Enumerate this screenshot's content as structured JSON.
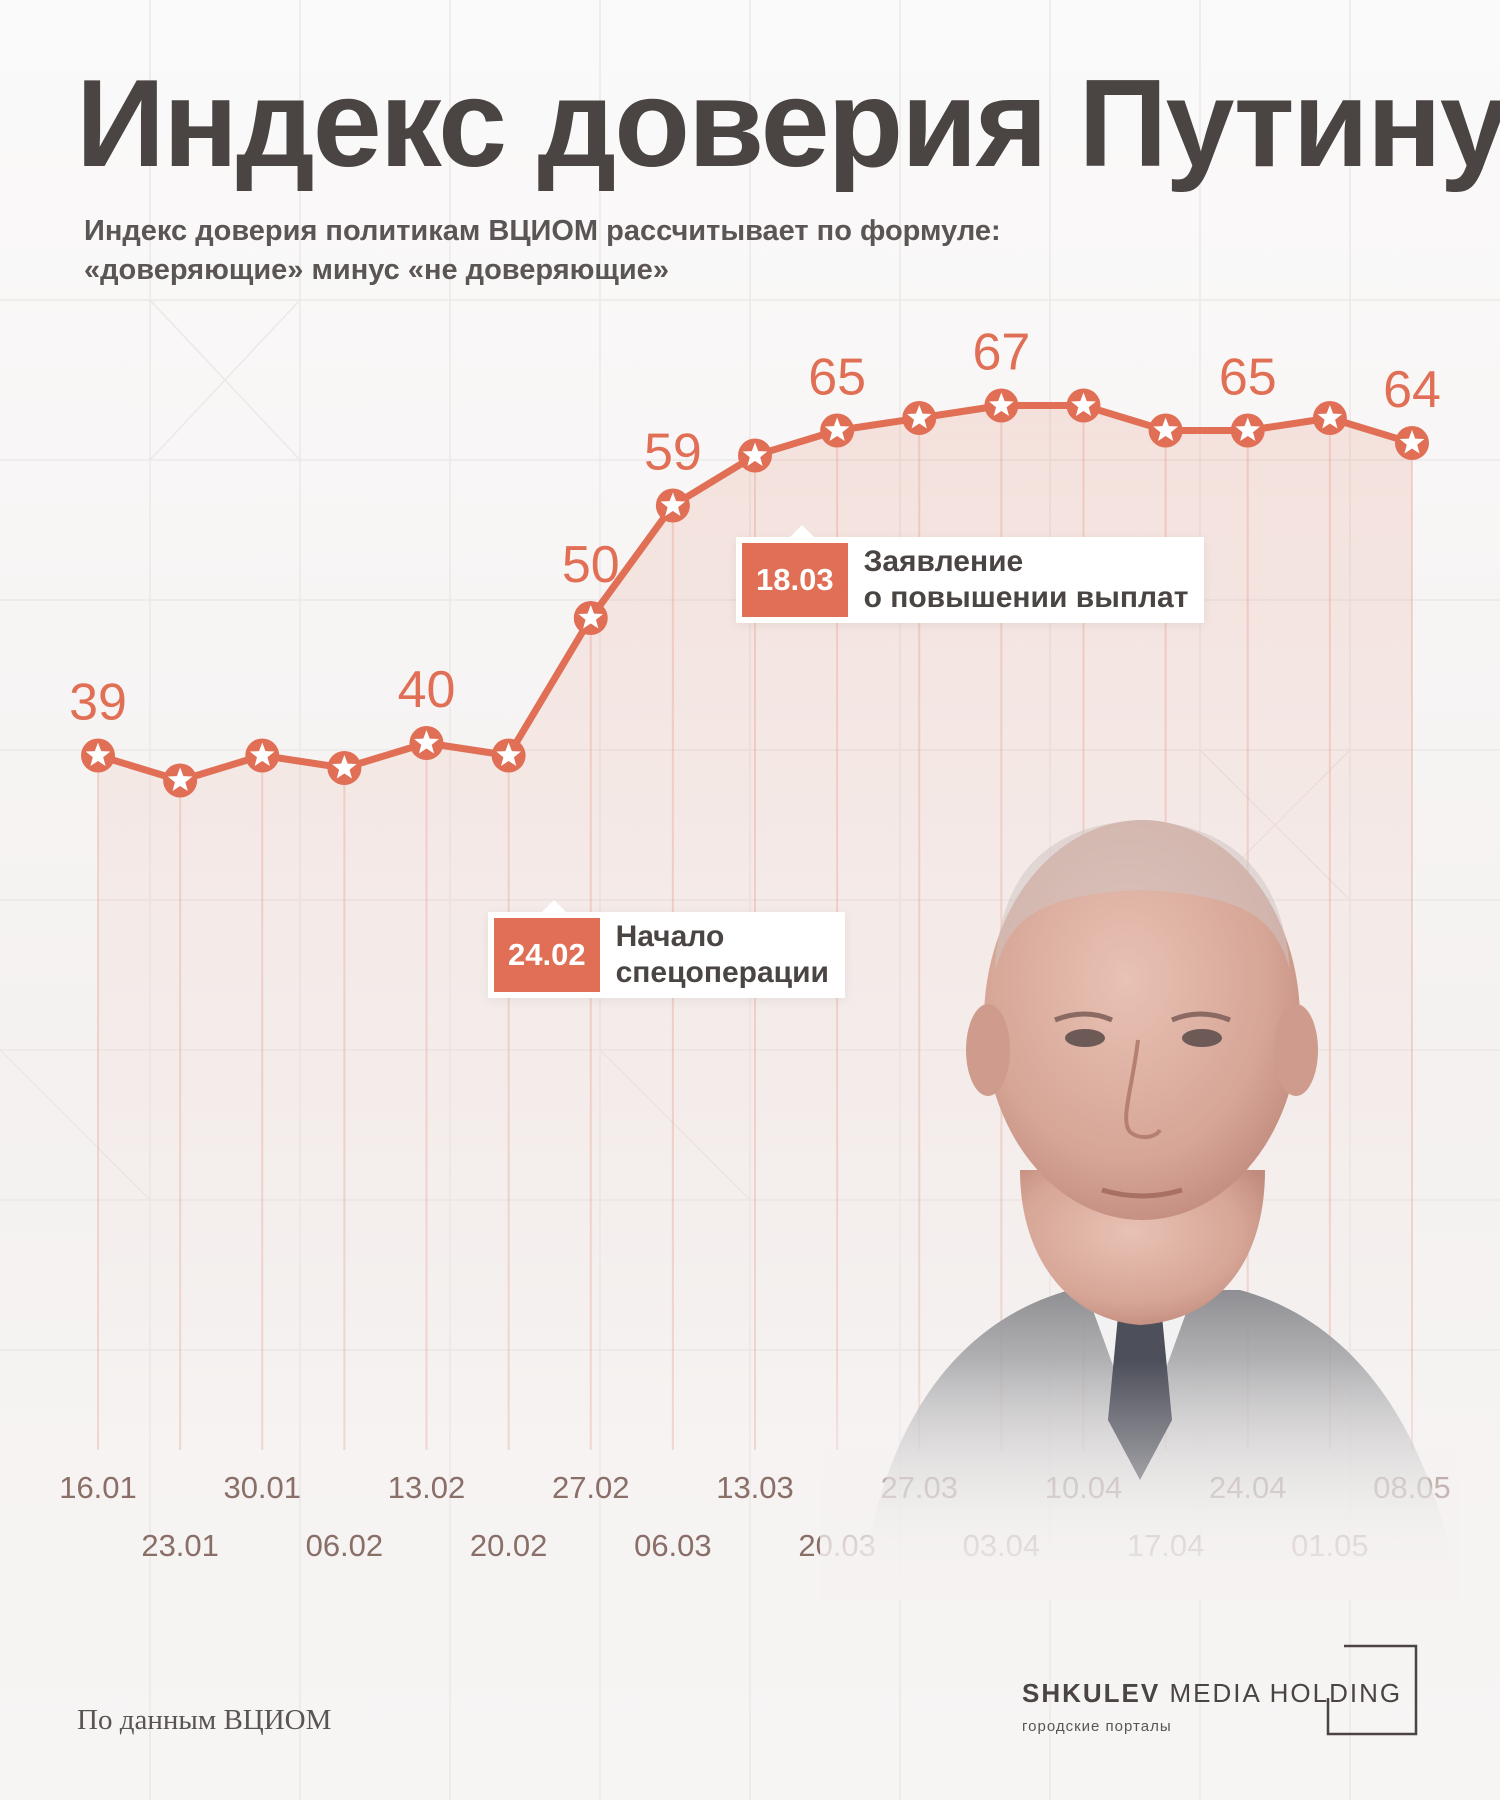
{
  "title": "Индекс доверия Путину",
  "subtitle": [
    "Индекс доверия политикам ВЦИОМ рассчитывает по формуле:",
    "«доверяющие» минус «не доверяющие»"
  ],
  "colors": {
    "accent": "#e06f55",
    "text": "#4a4443",
    "axis_text": "#8a6e68",
    "background": "#f6f3f2"
  },
  "chart_data": {
    "type": "line",
    "title": "Индекс доверия Путину",
    "xlabel": "",
    "ylabel": "",
    "grid": false,
    "categories": [
      "16.01",
      "23.01",
      "30.01",
      "06.02",
      "13.02",
      "20.02",
      "27.02",
      "06.03",
      "13.03",
      "20.03",
      "27.03",
      "03.04",
      "10.04",
      "17.04",
      "24.04",
      "01.05",
      "08.05"
    ],
    "values": [
      39,
      37,
      39,
      38,
      40,
      39,
      50,
      59,
      63,
      65,
      66,
      67,
      67,
      65,
      65,
      66,
      64
    ],
    "ylim": [
      30,
      70
    ],
    "data_labels": [
      {
        "index": 0,
        "text": "39"
      },
      {
        "index": 4,
        "text": "40"
      },
      {
        "index": 6,
        "text": "50"
      },
      {
        "index": 7,
        "text": "59"
      },
      {
        "index": 9,
        "text": "65"
      },
      {
        "index": 11,
        "text": "67"
      },
      {
        "index": 14,
        "text": "65"
      },
      {
        "index": 16,
        "text": "64"
      }
    ],
    "annotations": [
      {
        "date": "24.02",
        "text": [
          "Начало",
          "спецоперации"
        ]
      },
      {
        "date": "18.03",
        "text": [
          "Заявление",
          "о повышении выплат"
        ]
      }
    ]
  },
  "source": "По данным ВЦИОМ",
  "brand": {
    "name_bold": "SHKULEV",
    "name_rest": " MEDIA HOLDING",
    "tagline": "городские порталы"
  }
}
